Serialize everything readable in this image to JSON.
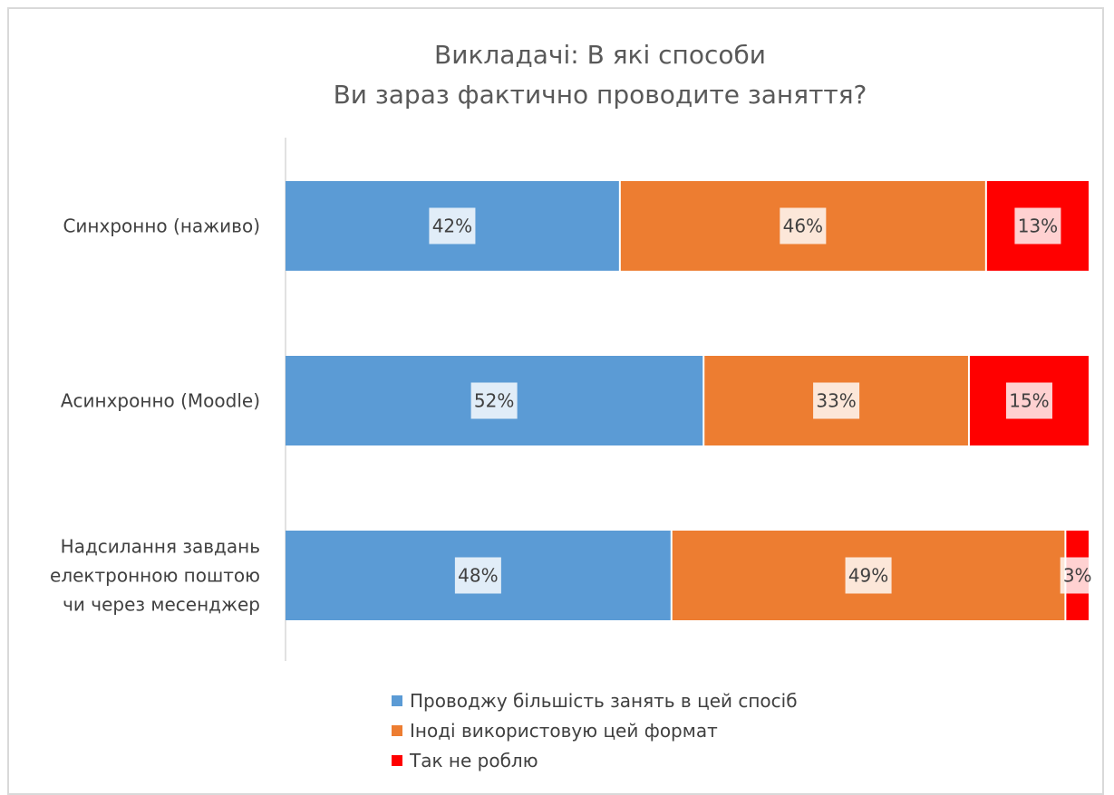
{
  "chart_data": {
    "type": "bar",
    "orientation": "horizontal",
    "stacked": "percent",
    "title_lines": [
      "Викладачі: В які способи",
      "Ви зараз фактично проводите заняття?"
    ],
    "categories": [
      [
        "Синхронно (наживо)"
      ],
      [
        "Асинхронно (Moodle)"
      ],
      [
        "Надсилання завдань",
        "електронною поштою",
        "чи через месенджер"
      ]
    ],
    "series": [
      {
        "name": "Проводжу більшість занять в цей спосіб",
        "color": "#5b9bd5",
        "values": [
          42,
          52,
          48
        ],
        "labels": [
          "42%",
          "52%",
          "48%"
        ]
      },
      {
        "name": "Іноді використовую цей формат",
        "color": "#ed7d31",
        "values": [
          46,
          33,
          49
        ],
        "labels": [
          "46%",
          "33%",
          "49%"
        ]
      },
      {
        "name": "Так не роблю",
        "color": "#ff0000",
        "values": [
          13,
          15,
          3
        ],
        "labels": [
          "13%",
          "15%",
          "3%"
        ]
      }
    ],
    "legend_position": "bottom",
    "grid": false
  }
}
